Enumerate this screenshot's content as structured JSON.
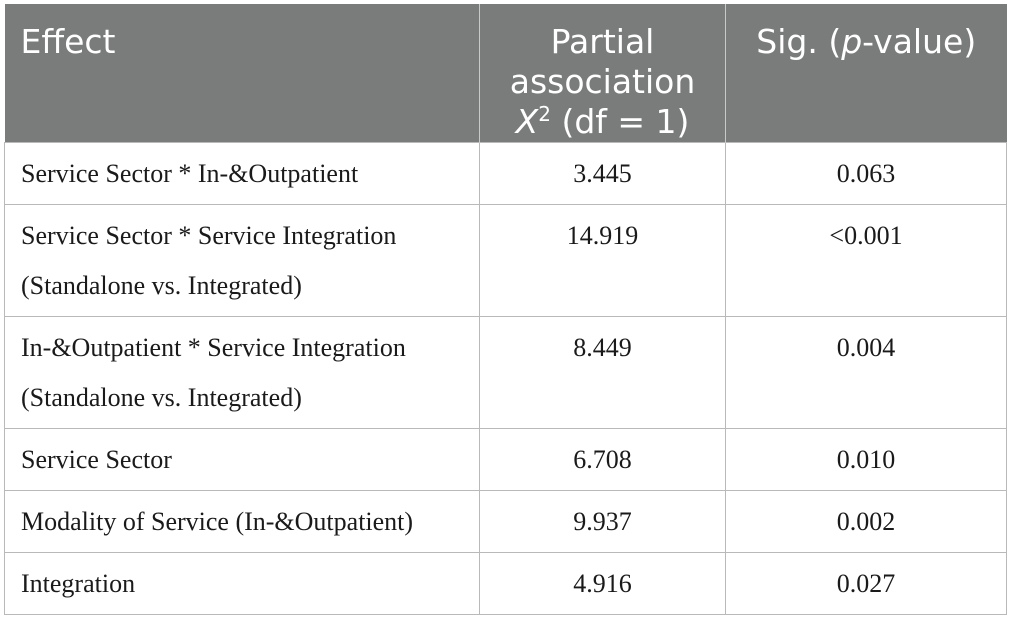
{
  "header": {
    "col1": "Effect",
    "col2_line1": "Partial",
    "col2_line2": "association",
    "col2_x": "X",
    "col2_sup": "2",
    "col2_rest": " (df = 1)",
    "col3_pre": "Sig. (",
    "col3_italic": "p",
    "col3_post": "-value)"
  },
  "rows": [
    {
      "effect_line1": "Service Sector * In-&Outpatient",
      "effect_line2": "",
      "chi2": "3.445",
      "sig": "0.063"
    },
    {
      "effect_line1": "Service Sector * Service Integration",
      "effect_line2": "(Standalone vs. Integrated)",
      "chi2": "14.919",
      "sig": "<0.001"
    },
    {
      "effect_line1": "In-&Outpatient * Service Integration",
      "effect_line2": "(Standalone vs. Integrated)",
      "chi2": "8.449",
      "sig": "0.004"
    },
    {
      "effect_line1": "Service Sector",
      "effect_line2": "",
      "chi2": "6.708",
      "sig": "0.010"
    },
    {
      "effect_line1": "Modality of Service (In-&Outpatient)",
      "effect_line2": "",
      "chi2": "9.937",
      "sig": "0.002"
    },
    {
      "effect_line1": "Integration",
      "effect_line2": "",
      "chi2": "4.916",
      "sig": "0.027"
    }
  ]
}
